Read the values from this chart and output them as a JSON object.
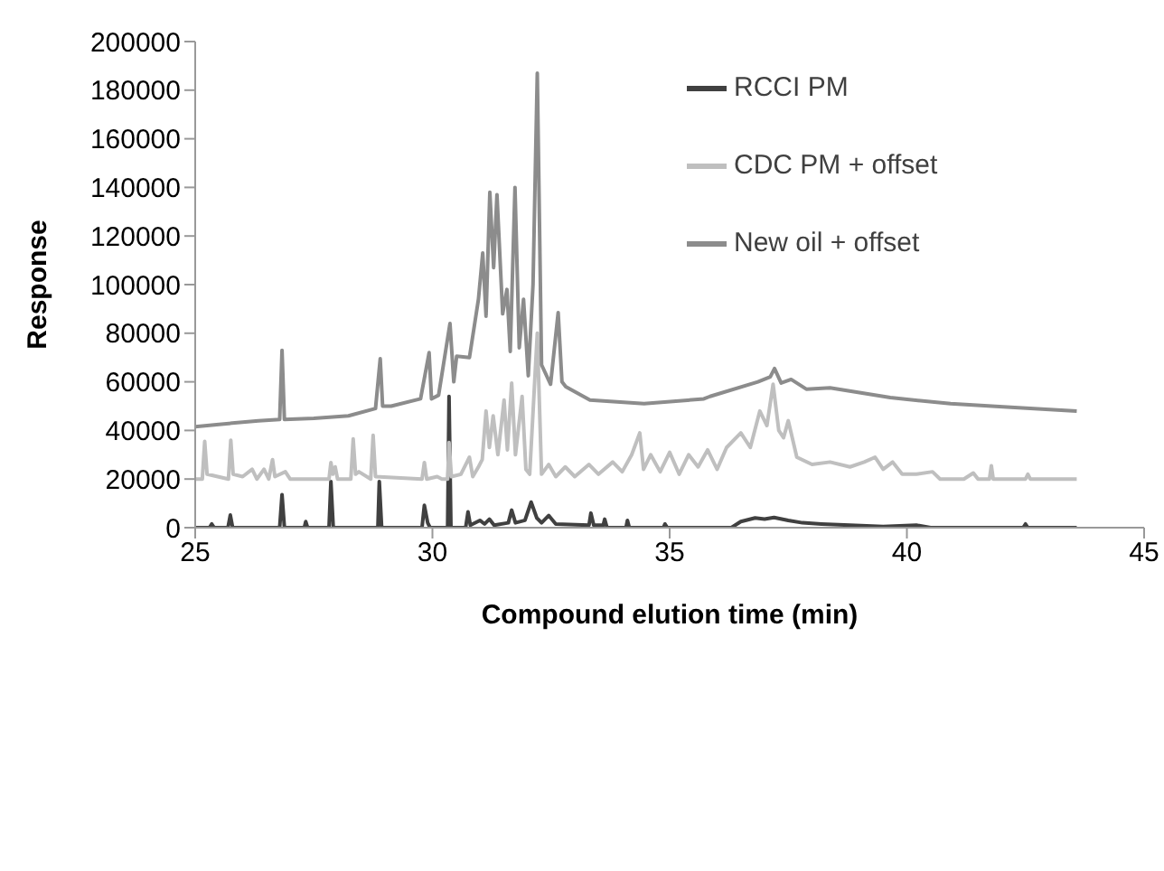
{
  "chart_data": {
    "type": "line",
    "xlabel": "Compound elution time (min)",
    "ylabel": "Response",
    "xlim": [
      25,
      45
    ],
    "xticks": [
      25,
      30,
      35,
      40,
      45
    ],
    "ylim": [
      0,
      200000
    ],
    "yticks": [
      0,
      20000,
      40000,
      60000,
      80000,
      100000,
      120000,
      140000,
      160000,
      180000,
      200000
    ],
    "grid": false,
    "legend": "top right",
    "marker": "none",
    "line_style": "solid",
    "series": [
      {
        "name": "RCCI PM",
        "color": "#404040",
        "x": [
          25,
          25.3,
          25.35,
          25.4,
          25.69,
          25.74,
          25.79,
          26.78,
          26.83,
          26.88,
          27.3,
          27.33,
          27.37,
          27.82,
          27.86,
          27.91,
          28.85,
          28.88,
          28.93,
          29.78,
          29.83,
          29.9,
          29.95,
          30.32,
          30.35,
          30.39,
          30.7,
          30.75,
          30.8,
          31.0,
          31.1,
          31.2,
          31.3,
          31.6,
          31.67,
          31.75,
          31.95,
          32.08,
          32.2,
          32.3,
          32.45,
          32.6,
          33.3,
          33.34,
          33.4,
          33.6,
          33.63,
          33.68,
          34.08,
          34.11,
          34.15,
          34.87,
          34.9,
          34.95,
          36.3,
          36.5,
          36.8,
          37.0,
          37.2,
          37.5,
          37.8,
          38.2,
          38.8,
          39.5,
          40.2,
          40.5,
          42.45,
          42.5,
          42.55,
          43.58
        ],
        "values": [
          0,
          0,
          1500,
          0,
          0,
          5200,
          0,
          0,
          13600,
          0,
          0,
          2500,
          0,
          0,
          19000,
          0,
          0,
          19000,
          0,
          0,
          9200,
          2000,
          0,
          0,
          54000,
          0,
          0,
          6500,
          1000,
          3000,
          1500,
          3500,
          1000,
          2000,
          7200,
          2000,
          3000,
          10500,
          4000,
          2000,
          5000,
          1500,
          1000,
          6000,
          1000,
          1000,
          3500,
          0,
          0,
          3000,
          0,
          0,
          1500,
          0,
          0,
          2500,
          4000,
          3500,
          4200,
          3000,
          2000,
          1500,
          1000,
          500,
          1000,
          0,
          0,
          1500,
          0,
          0
        ]
      },
      {
        "name": "CDC PM + offset",
        "color": "#bfbfbf",
        "x": [
          25,
          25.15,
          25.2,
          25.25,
          25.7,
          25.75,
          25.8,
          26.0,
          26.2,
          26.3,
          26.45,
          26.55,
          26.63,
          26.68,
          26.9,
          27.0,
          27.3,
          27.82,
          27.86,
          27.9,
          27.95,
          28.0,
          28.28,
          28.33,
          28.38,
          28.45,
          28.7,
          28.75,
          28.8,
          29.78,
          29.83,
          29.88,
          30.1,
          30.2,
          30.32,
          30.35,
          30.4,
          30.6,
          30.78,
          30.85,
          30.97,
          31.05,
          31.13,
          31.2,
          31.28,
          31.38,
          31.51,
          31.58,
          31.67,
          31.75,
          31.89,
          31.97,
          32.05,
          32.21,
          32.3,
          32.45,
          32.6,
          32.8,
          33.0,
          33.3,
          33.5,
          33.8,
          34.0,
          34.2,
          34.37,
          34.45,
          34.6,
          34.8,
          35.0,
          35.2,
          35.4,
          35.6,
          35.8,
          36.0,
          36.2,
          36.5,
          36.7,
          36.9,
          37.05,
          37.18,
          37.3,
          37.4,
          37.5,
          37.68,
          38.0,
          38.38,
          38.8,
          39.1,
          39.33,
          39.5,
          39.7,
          39.9,
          40.2,
          40.54,
          40.7,
          41.2,
          41.4,
          41.5,
          41.74,
          41.78,
          41.82,
          42.5,
          42.55,
          42.6,
          43.58
        ],
        "values": [
          20000,
          20000,
          35500,
          22000,
          20000,
          36000,
          22000,
          21000,
          24000,
          20000,
          24000,
          20000,
          28000,
          21000,
          23000,
          20000,
          20000,
          20000,
          26800,
          22000,
          25000,
          20000,
          20000,
          36500,
          22000,
          23000,
          20000,
          38000,
          21000,
          20000,
          26800,
          20000,
          21000,
          20000,
          20000,
          35000,
          21000,
          22000,
          29000,
          21000,
          25000,
          28000,
          48000,
          33000,
          46000,
          30000,
          52500,
          32000,
          59500,
          30000,
          54000,
          24000,
          22000,
          80000,
          22000,
          26000,
          21000,
          25000,
          21000,
          26000,
          22000,
          27000,
          23000,
          30000,
          39000,
          24000,
          30000,
          23000,
          31000,
          22000,
          30000,
          25000,
          32000,
          24000,
          33000,
          39000,
          33000,
          48000,
          42000,
          59000,
          40000,
          37000,
          44000,
          29000,
          26000,
          27000,
          25000,
          27000,
          29000,
          24000,
          27000,
          22000,
          22000,
          23000,
          20000,
          20000,
          22500,
          20000,
          20000,
          25500,
          20000,
          20000,
          22000,
          20000,
          20000
        ]
      },
      {
        "name": "New oil + offset",
        "color": "#8c8c8c",
        "x": [
          25,
          25.5,
          26.33,
          26.78,
          26.83,
          26.88,
          27.5,
          28.23,
          28.8,
          28.9,
          28.95,
          29.13,
          29.75,
          29.93,
          29.98,
          30.13,
          30.37,
          30.45,
          30.51,
          30.78,
          30.97,
          31.06,
          31.13,
          31.21,
          31.29,
          31.36,
          31.48,
          31.57,
          31.64,
          31.74,
          31.83,
          31.92,
          32.02,
          32.12,
          32.21,
          32.3,
          32.49,
          32.65,
          32.73,
          32.81,
          33.32,
          34.46,
          35.72,
          35.85,
          36.86,
          37.12,
          37.21,
          37.35,
          37.56,
          37.88,
          38.38,
          39.65,
          40.92,
          42.19,
          43.58
        ],
        "values": [
          41500,
          42500,
          44000,
          44500,
          73000,
          44500,
          45000,
          46000,
          49000,
          69500,
          50000,
          50000,
          53000,
          72000,
          53000,
          54500,
          84000,
          60000,
          70500,
          70000,
          94000,
          113000,
          87000,
          138000,
          107000,
          137000,
          88000,
          98000,
          72500,
          140000,
          74000,
          94000,
          62500,
          100000,
          187000,
          67000,
          59000,
          88500,
          60000,
          58000,
          52500,
          51000,
          53000,
          54000,
          60000,
          62000,
          65500,
          59500,
          61000,
          57000,
          57500,
          53500,
          51000,
          49500,
          48000
        ]
      }
    ]
  }
}
